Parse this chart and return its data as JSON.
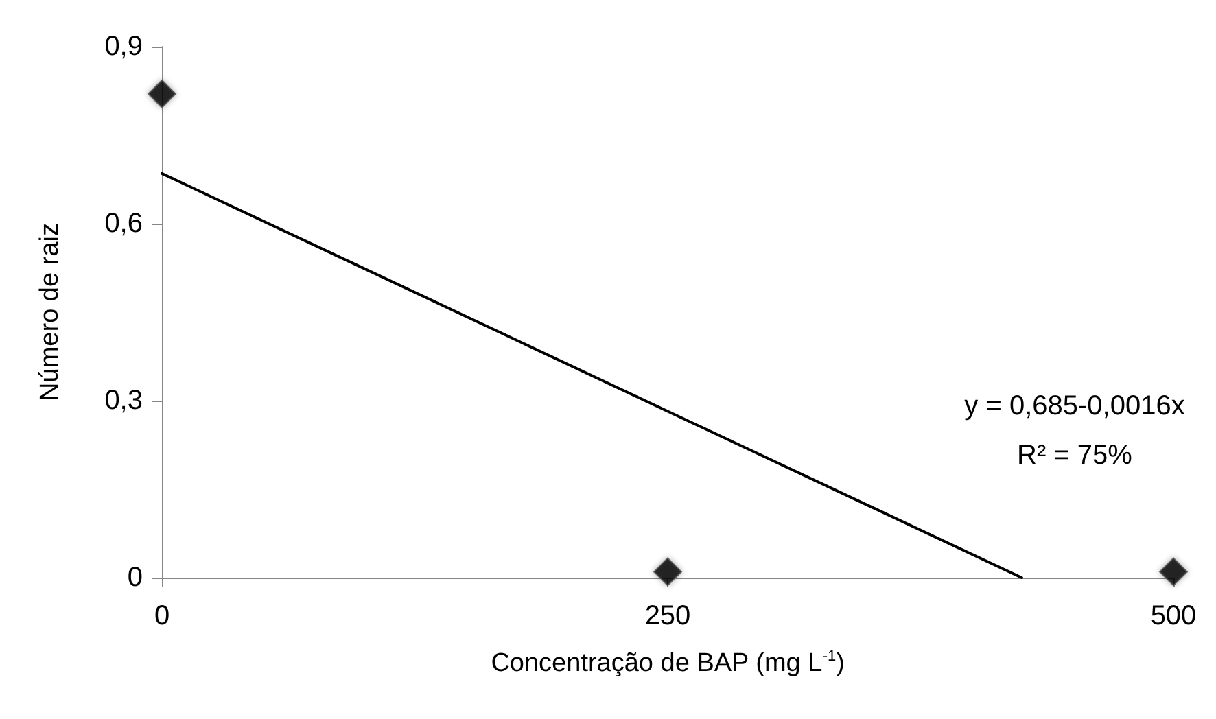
{
  "chart_data": {
    "type": "scatter",
    "xlabel": "Concentração de BAP (mg L$^{-1}$)",
    "ylabel": "Número de raiz",
    "annotations": [
      "y = 0,685-0,0016x",
      "R² = 75%"
    ],
    "xlim": [
      0,
      500
    ],
    "xticks": [
      0,
      250,
      500
    ],
    "ylim": [
      0,
      0.9
    ],
    "yticks": [
      0,
      {
        "value": 0.3,
        "label": "0,3"
      },
      {
        "value": 0.6,
        "label": "0,6"
      },
      {
        "value": 0.9,
        "label": "0,9"
      }
    ],
    "grid": false,
    "series": [
      {
        "x": [
          0,
          250,
          500
        ],
        "values": [
          0.82,
          0.01,
          0.01
        ],
        "color": "#000000",
        "marker": "diamond"
      },
      {
        "type": "line",
        "x": [
          0,
          425
        ],
        "values": [
          0.685,
          0
        ],
        "color": "#000000",
        "marker": "none",
        "line_style": "solid"
      }
    ]
  }
}
